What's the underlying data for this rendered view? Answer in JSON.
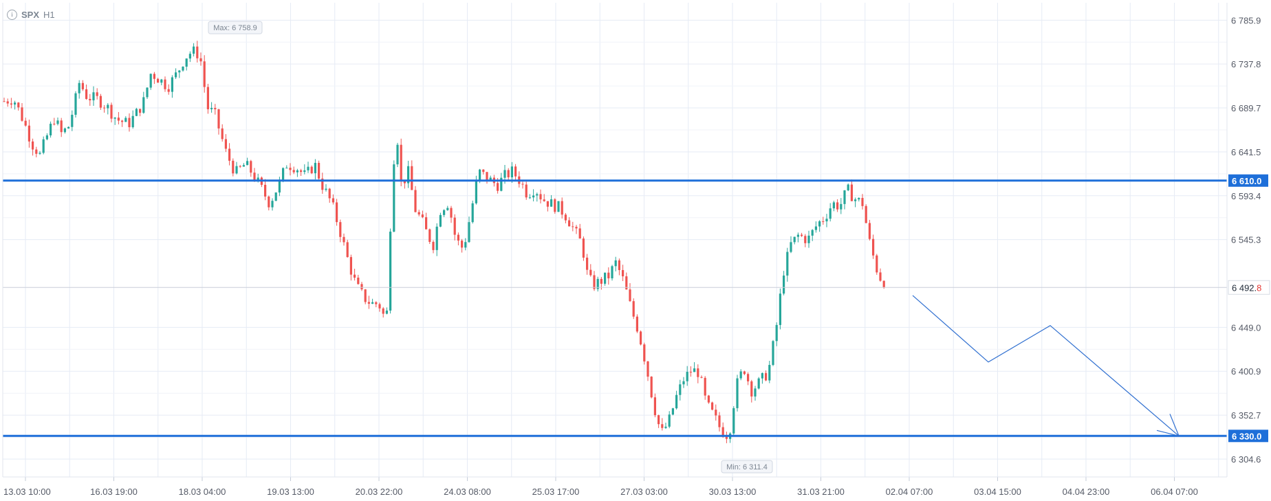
{
  "header": {
    "info_icon": "i",
    "symbol": "SPX",
    "timeframe": "H1"
  },
  "colors": {
    "bull": "#26a69a",
    "bear": "#ef5350",
    "level_line": "#1e6fd9",
    "forecast_line": "#2f6fd0",
    "grid": "#e6ebf5"
  },
  "chart_data": {
    "type": "candlestick",
    "symbol": "SPX",
    "timeframe": "H1",
    "y_ticks": [
      "6 785.9",
      "6 737.8",
      "6 689.7",
      "6 641.5",
      "6 593.4",
      "6 545.3",
      "6 449.0",
      "6 400.9",
      "6 352.7",
      "6 304.6"
    ],
    "x_ticks": [
      "13.03 10:00",
      "16.03 19:00",
      "18.03 04:00",
      "19.03 13:00",
      "20.03 22:00",
      "24.03 08:00",
      "25.03 17:00",
      "27.03 03:00",
      "30.03 13:00",
      "31.03 21:00",
      "02.04 07:00",
      "03.04 15:00",
      "04.04 23:00",
      "06.04 07:00"
    ],
    "ylim": [
      6285,
      6805
    ],
    "levels": [
      {
        "label": "6 610.0",
        "value": 6610.0
      },
      {
        "label": "6 330.0",
        "value": 6330.0
      }
    ],
    "current_price": {
      "label_main": "6 492.",
      "label_last_digit": "8",
      "value": 6492.8
    },
    "max_marker": {
      "label": "Max: 6 758.9",
      "value": 6758.9
    },
    "min_marker": {
      "label": "Min: 6 311.4",
      "value": 6311.4
    },
    "forecast_path": [
      {
        "x": "02.04 07:00",
        "y": 6484
      },
      {
        "x": "03.04 15:00",
        "y": 6411
      },
      {
        "x": "04.04 23:00",
        "y": 6451
      },
      {
        "x": "06.04 07:00",
        "y": 6330
      }
    ],
    "price_path": [
      [
        0,
        6697
      ],
      [
        0.5,
        6700
      ],
      [
        1,
        6677
      ],
      [
        1.5,
        6650
      ],
      [
        1.9,
        6638
      ],
      [
        2.3,
        6660
      ],
      [
        2.7,
        6680
      ],
      [
        3,
        6661
      ],
      [
        3.4,
        6668
      ],
      [
        3.7,
        6690
      ],
      [
        4,
        6718
      ],
      [
        4.4,
        6702
      ],
      [
        5,
        6699
      ],
      [
        5.5,
        6690
      ],
      [
        6,
        6677
      ],
      [
        6.6,
        6672
      ],
      [
        7,
        6683
      ],
      [
        7.4,
        6696
      ],
      [
        7.8,
        6728
      ],
      [
        8.2,
        6722
      ],
      [
        8.7,
        6713
      ],
      [
        9.2,
        6728
      ],
      [
        9.6,
        6745
      ],
      [
        10,
        6752
      ],
      [
        10.4,
        6748
      ],
      [
        10.8,
        6690
      ],
      [
        11.2,
        6682
      ],
      [
        11.8,
        6640
      ],
      [
        12.3,
        6618
      ],
      [
        12.8,
        6628
      ],
      [
        13.2,
        6618
      ],
      [
        13.7,
        6600
      ],
      [
        14.1,
        6585
      ],
      [
        14.6,
        6606
      ],
      [
        15,
        6628
      ],
      [
        15.5,
        6625
      ],
      [
        16,
        6615
      ],
      [
        16.5,
        6628
      ],
      [
        16.9,
        6605
      ],
      [
        17.4,
        6585
      ],
      [
        17.8,
        6558
      ],
      [
        18.3,
        6520
      ],
      [
        18.7,
        6495
      ],
      [
        19.1,
        6482
      ],
      [
        19.5,
        6475
      ],
      [
        19.9,
        6475
      ],
      [
        20.2,
        6460
      ],
      [
        20.4,
        6468
      ],
      [
        20.6,
        6623
      ],
      [
        20.9,
        6655
      ],
      [
        21.1,
        6605
      ],
      [
        21.5,
        6620
      ],
      [
        21.8,
        6580
      ],
      [
        22.2,
        6565
      ],
      [
        22.5,
        6550
      ],
      [
        22.8,
        6540
      ],
      [
        23.2,
        6580
      ],
      [
        23.6,
        6586
      ],
      [
        24,
        6545
      ],
      [
        24.4,
        6535
      ],
      [
        24.8,
        6575
      ],
      [
        25.2,
        6620
      ],
      [
        25.7,
        6612
      ],
      [
        26.2,
        6605
      ],
      [
        26.6,
        6615
      ],
      [
        27,
        6620
      ],
      [
        27.4,
        6610
      ],
      [
        27.8,
        6595
      ],
      [
        28.2,
        6602
      ],
      [
        28.6,
        6590
      ],
      [
        29,
        6585
      ],
      [
        29.5,
        6580
      ],
      [
        29.9,
        6570
      ],
      [
        30.3,
        6555
      ],
      [
        30.7,
        6540
      ],
      [
        31,
        6505
      ],
      [
        31.3,
        6495
      ],
      [
        31.7,
        6500
      ],
      [
        32.1,
        6505
      ],
      [
        32.5,
        6520
      ],
      [
        32.9,
        6500
      ],
      [
        33.3,
        6470
      ],
      [
        33.7,
        6445
      ],
      [
        34.1,
        6408
      ],
      [
        34.5,
        6365
      ],
      [
        34.9,
        6332
      ],
      [
        35.3,
        6345
      ],
      [
        35.7,
        6372
      ],
      [
        36.1,
        6392
      ],
      [
        36.5,
        6402
      ],
      [
        36.9,
        6400
      ],
      [
        37.3,
        6365
      ],
      [
        37.7,
        6352
      ],
      [
        38.1,
        6336
      ],
      [
        38.5,
        6330
      ],
      [
        38.9,
        6385
      ],
      [
        39.3,
        6405
      ],
      [
        39.7,
        6380
      ],
      [
        40.1,
        6388
      ],
      [
        40.6,
        6400
      ],
      [
        41,
        6445
      ],
      [
        41.4,
        6510
      ],
      [
        41.8,
        6540
      ],
      [
        42.2,
        6550
      ],
      [
        42.7,
        6545
      ],
      [
        43.2,
        6562
      ],
      [
        43.6,
        6570
      ],
      [
        44,
        6585
      ],
      [
        44.4,
        6582
      ],
      [
        44.8,
        6600
      ],
      [
        45.2,
        6590
      ],
      [
        45.6,
        6585
      ],
      [
        46,
        6540
      ],
      [
        46.4,
        6510
      ],
      [
        46.8,
        6492.8
      ]
    ]
  }
}
